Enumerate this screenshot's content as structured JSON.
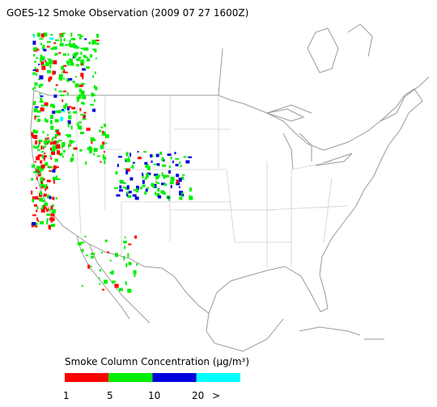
{
  "header": {
    "title": "GOES-12 Smoke Observation (2009 07 27  1600Z)"
  },
  "legend": {
    "title": "Smoke Column Concentration (μg/m³)",
    "colors": [
      "#ff0000",
      "#00ee00",
      "#0000dd",
      "#00ffff"
    ],
    "labels": [
      "1",
      "5",
      "10",
      "20",
      ">"
    ]
  }
}
